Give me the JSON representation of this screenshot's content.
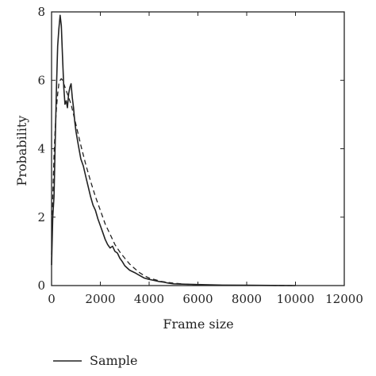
{
  "chart_data": {
    "type": "line",
    "title": "",
    "xlabel": "Frame size",
    "ylabel": "Probability",
    "xlim": [
      0,
      12000
    ],
    "ylim": [
      0,
      8
    ],
    "xticks": [
      "0",
      "2000",
      "4000",
      "6000",
      "8000",
      "10000",
      "12000"
    ],
    "yticks": [
      "0",
      "2",
      "4",
      "6",
      "8"
    ],
    "grid": false,
    "legend_position": "bottom-left, below plot",
    "series": [
      {
        "name": "Sample",
        "style": "solid",
        "color": "#222222",
        "x": [
          0,
          50,
          100,
          150,
          200,
          250,
          300,
          350,
          400,
          450,
          500,
          550,
          600,
          650,
          700,
          750,
          800,
          850,
          900,
          950,
          1000,
          1100,
          1200,
          1300,
          1400,
          1500,
          1600,
          1700,
          1800,
          1900,
          2000,
          2100,
          2200,
          2300,
          2400,
          2500,
          2600,
          2700,
          2800,
          2900,
          3000,
          3200,
          3400,
          3600,
          3800,
          4000,
          4200,
          4400,
          4600,
          4800,
          5000,
          5500,
          6000,
          6500,
          7000,
          8000,
          9000,
          10000
        ],
        "y": [
          0.6,
          2.0,
          2.6,
          4.2,
          5.8,
          7.0,
          7.5,
          7.9,
          7.6,
          6.7,
          5.8,
          5.3,
          5.4,
          5.2,
          5.6,
          5.8,
          5.9,
          5.5,
          5.2,
          4.8,
          4.5,
          4.1,
          3.7,
          3.5,
          3.2,
          2.9,
          2.6,
          2.35,
          2.2,
          1.95,
          1.75,
          1.55,
          1.35,
          1.2,
          1.1,
          1.15,
          1.0,
          0.95,
          0.8,
          0.7,
          0.58,
          0.45,
          0.38,
          0.3,
          0.22,
          0.18,
          0.15,
          0.12,
          0.1,
          0.07,
          0.05,
          0.04,
          0.03,
          0.02,
          0.015,
          0.01,
          0.005,
          0.0
        ]
      },
      {
        "name": "",
        "style": "dashed",
        "color": "#222222",
        "x": [
          0,
          50,
          100,
          150,
          200,
          250,
          300,
          350,
          400,
          450,
          500,
          600,
          700,
          800,
          900,
          1000,
          1200,
          1400,
          1600,
          1800,
          2000,
          2200,
          2400,
          2600,
          2800,
          3000,
          3200,
          3400,
          3600,
          3800,
          4000,
          4500,
          5000,
          5500,
          6000,
          7000,
          8000,
          9000,
          10000
        ],
        "y": [
          0.9,
          2.6,
          3.8,
          4.6,
          5.2,
          5.6,
          5.9,
          6.0,
          6.05,
          6.0,
          5.9,
          5.7,
          5.5,
          5.3,
          5.0,
          4.7,
          4.1,
          3.55,
          3.05,
          2.6,
          2.2,
          1.8,
          1.5,
          1.2,
          0.98,
          0.8,
          0.63,
          0.5,
          0.38,
          0.29,
          0.22,
          0.12,
          0.07,
          0.04,
          0.025,
          0.01,
          0.005,
          0.002,
          0.0
        ]
      }
    ],
    "legend": {
      "entries": [
        "Sample",
        ""
      ]
    }
  }
}
